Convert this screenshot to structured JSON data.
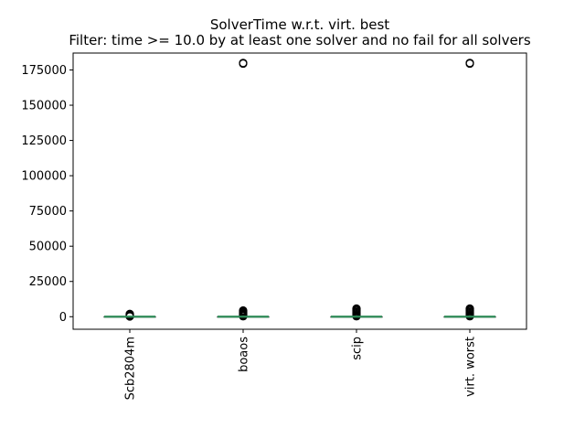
{
  "chart_data": {
    "type": "box",
    "title": "SolverTime w.r.t. virt. best",
    "subtitle": "Filter: time >= 10.0 by at least one solver and no fail for all solvers",
    "xlabel": "",
    "ylabel": "",
    "categories": [
      "Scb2804m",
      "boaos",
      "scip",
      "virt. worst"
    ],
    "ylim": [
      -8900,
      187000
    ],
    "yticks": [
      0,
      25000,
      50000,
      75000,
      100000,
      125000,
      150000,
      175000
    ],
    "grid": false,
    "median_color": "#2e8b57",
    "box_color": "#000000",
    "series": [
      {
        "category": "Scb2804m",
        "q1": 0,
        "median": 0,
        "q3": 0,
        "whisker_low": 0,
        "whisker_high": 0,
        "outliers": [
          200,
          400,
          600,
          800,
          1000,
          1300,
          1600,
          2000
        ]
      },
      {
        "category": "boaos",
        "q1": 0,
        "median": 0,
        "q3": 0,
        "whisker_low": 0,
        "whisker_high": 0,
        "outliers": [
          300,
          600,
          1000,
          1500,
          2000,
          2600,
          3200,
          3800,
          4400,
          179500,
          180000
        ]
      },
      {
        "category": "scip",
        "q1": 0,
        "median": 0,
        "q3": 0,
        "whisker_low": 0,
        "whisker_high": 0,
        "outliers": [
          300,
          700,
          1200,
          1800,
          2500,
          3200,
          4000,
          4700,
          5300,
          5800
        ]
      },
      {
        "category": "virt. worst",
        "q1": 0,
        "median": 0,
        "q3": 0,
        "whisker_low": 0,
        "whisker_high": 0,
        "outliers": [
          300,
          700,
          1200,
          1800,
          2500,
          3200,
          4000,
          4700,
          5300,
          5800,
          179500,
          180000
        ]
      }
    ]
  }
}
